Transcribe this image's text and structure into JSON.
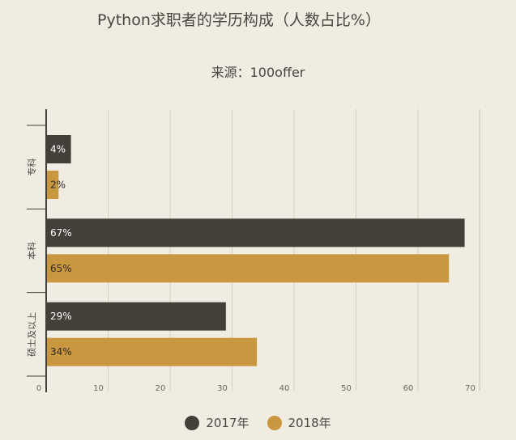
{
  "chart_data": {
    "type": "bar",
    "orientation": "horizontal",
    "title": "Python求职者的学历构成（人数占比%）",
    "subtitle": "来源：100offer",
    "categories": [
      "专科",
      "本科",
      "硕士及以上"
    ],
    "series": [
      {
        "name": "2017年",
        "color": "#433f39",
        "values": [
          4,
          67,
          29
        ],
        "labels": [
          "4%",
          "67%",
          "29%"
        ]
      },
      {
        "name": "2018年",
        "color": "#c9973f",
        "values": [
          2,
          65,
          34
        ],
        "labels": [
          "2%",
          "65%",
          "34%"
        ]
      }
    ],
    "xlim": [
      0,
      70
    ],
    "xticks": [
      0,
      10,
      20,
      30,
      40,
      50,
      60,
      70
    ],
    "grid": true,
    "legend": "bottom"
  }
}
